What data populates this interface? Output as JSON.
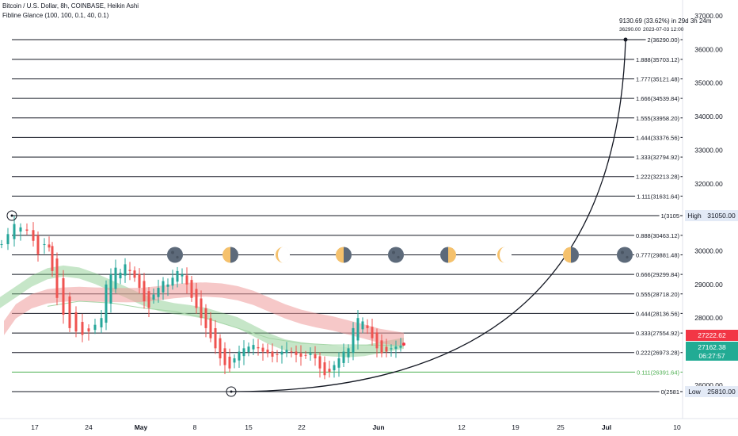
{
  "header": {
    "symbol_line": "Bitcoin / U.S. Dollar, 8h, COINBASE, Heikin Ashi",
    "indicator_line": "Fibline Glance (100, 100, 0.1, 40, 0.1)"
  },
  "projection": {
    "line1": "9130.69 (33.62%) in 29d 3h 24m",
    "line2": "36290.00",
    "line3": "2023-07-03  12:00"
  },
  "chart_data": {
    "type": "line",
    "y_axis_labels": [
      "37000.00",
      "36000.00",
      "35000.00",
      "34000.00",
      "33000.00",
      "32000.00",
      "31050.00",
      "30000.00",
      "29000.00",
      "28000.00",
      "26000.00",
      "25810.00"
    ],
    "x_axis_labels": [
      "17",
      "24",
      "May",
      "8",
      "15",
      "22",
      "Jun",
      "12",
      "19",
      "25",
      "Jul",
      "10"
    ],
    "fib_levels": [
      {
        "ratio": "2",
        "price": 36290.0,
        "label": "2(36290.00)"
      },
      {
        "ratio": "1.888",
        "price": 35703.12,
        "label": "1.888(35703.12)"
      },
      {
        "ratio": "1.777",
        "price": 35121.48,
        "label": "1.777(35121.48)"
      },
      {
        "ratio": "1.666",
        "price": 34539.84,
        "label": "1.666(34539.84)"
      },
      {
        "ratio": "1.555",
        "price": 33958.2,
        "label": "1.555(33958.20)"
      },
      {
        "ratio": "1.444",
        "price": 33376.56,
        "label": "1.444(33376.56)"
      },
      {
        "ratio": "1.333",
        "price": 32794.92,
        "label": "1.333(32794.92)"
      },
      {
        "ratio": "1.222",
        "price": 32213.28,
        "label": "1.222(32213.28)"
      },
      {
        "ratio": "1.111",
        "price": 31631.64,
        "label": "1.111(31631.64)"
      },
      {
        "ratio": "1",
        "price": 31050.0,
        "label": "1(3105"
      },
      {
        "ratio": "0.888",
        "price": 30463.12,
        "label": "0.888(30463.12)"
      },
      {
        "ratio": "0.777",
        "price": 29881.48,
        "label": "0.777(29881.48)"
      },
      {
        "ratio": "0.666",
        "price": 29299.84,
        "label": "0.666(29299.84)"
      },
      {
        "ratio": "0.555",
        "price": 28718.2,
        "label": "0.555(28718.20)"
      },
      {
        "ratio": "0.444",
        "price": 28136.56,
        "label": "0.444(28136.56)"
      },
      {
        "ratio": "0.333",
        "price": 27554.92,
        "label": "0.333(27554.92)"
      },
      {
        "ratio": "0.222",
        "price": 26973.28,
        "label": "0.222(26973.28)"
      },
      {
        "ratio": "0.111",
        "price": 26391.64,
        "label": "0.111(26391.64)",
        "color": "#4caf50"
      },
      {
        "ratio": "0",
        "price": 25810.0,
        "label": "0(2581"
      }
    ],
    "price_badges": [
      {
        "name": "high",
        "tag": "High",
        "value": "31050.00"
      },
      {
        "name": "low",
        "tag": "Low",
        "value": "25810.00"
      },
      {
        "name": "ema",
        "value": "27222.62",
        "color": "#f23645"
      },
      {
        "name": "last",
        "value": "27162.38",
        "countdown": "06:27:57",
        "color": "#22ab94"
      }
    ],
    "moon_phases": [
      "new",
      "first-quarter",
      "waxing-crescent",
      "first-quarter",
      "new",
      "last-quarter",
      "waxing-crescent",
      "first-quarter",
      "new"
    ]
  },
  "colors": {
    "up": "#26a69a",
    "down": "#ef5350",
    "green_band": "#81c784",
    "red_band": "#ef9a9a",
    "fib_line": "#131722",
    "axis_bg": "#ffffff"
  }
}
